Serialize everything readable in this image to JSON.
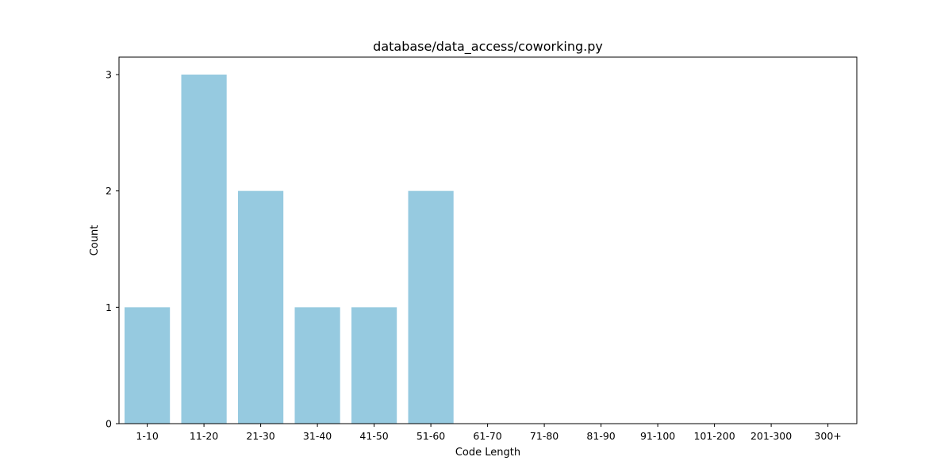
{
  "chart_data": {
    "type": "bar",
    "title": "database/data_access/coworking.py",
    "xlabel": "Code Length",
    "ylabel": "Count",
    "categories": [
      "1-10",
      "11-20",
      "21-30",
      "31-40",
      "41-50",
      "51-60",
      "61-70",
      "71-80",
      "81-90",
      "91-100",
      "101-200",
      "201-300",
      "300+"
    ],
    "values": [
      1,
      3,
      2,
      1,
      1,
      2,
      0,
      0,
      0,
      0,
      0,
      0,
      0
    ],
    "ylim": [
      0,
      3.15
    ],
    "yticks": [
      "0",
      "1",
      "2",
      "3"
    ],
    "bar_color": "#96CAE0",
    "grid": false,
    "legend": "none"
  }
}
